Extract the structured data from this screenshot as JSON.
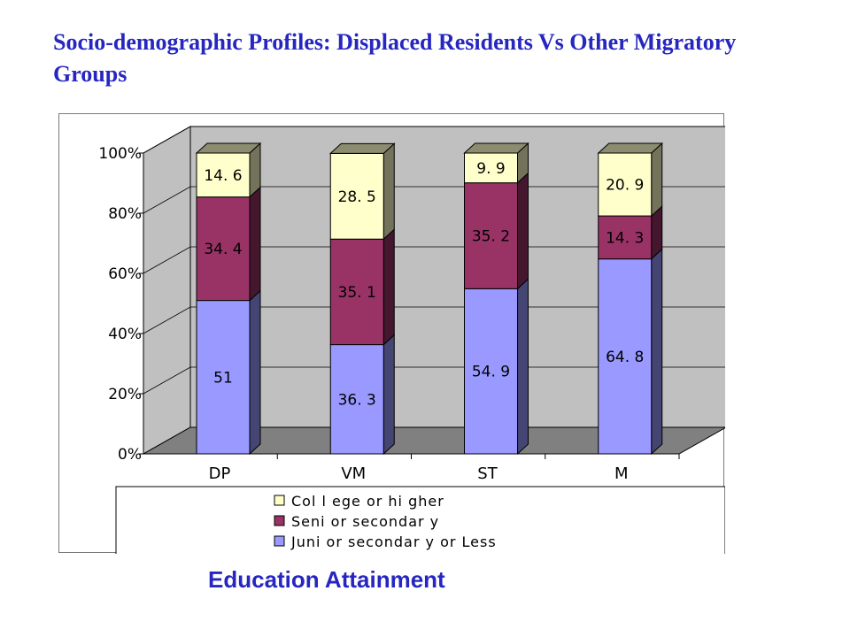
{
  "slide": {
    "title": "Socio-demographic Profiles: Displaced Residents Vs Other Migratory Groups",
    "caption": "Education Attainment"
  },
  "chart_data": {
    "type": "bar",
    "stacked": true,
    "percent": true,
    "three_d": true,
    "categories": [
      "DP",
      "VM",
      "ST",
      "M"
    ],
    "series": [
      {
        "name": "Juni or  secondar y  or  Less",
        "values": [
          51,
          36.3,
          54.9,
          64.8
        ],
        "labels": [
          "51",
          "36. 3",
          "54. 9",
          "64. 8"
        ],
        "color": "#9999ff"
      },
      {
        "name": "Seni or  secondar y",
        "values": [
          34.4,
          35.1,
          35.2,
          14.3
        ],
        "labels": [
          "34. 4",
          "35. 1",
          "35. 2",
          "14. 3"
        ],
        "color": "#993366"
      },
      {
        "name": "Col l ege  or  hi gher",
        "values": [
          14.6,
          28.5,
          9.9,
          20.9
        ],
        "labels": [
          "14. 6",
          "28. 5",
          "9. 9",
          "20. 9"
        ],
        "color": "#ffffcc"
      }
    ],
    "y_ticks": [
      "0%",
      "20%",
      "40%",
      "60%",
      "80%",
      "100%"
    ],
    "ylim": [
      0,
      100
    ],
    "grid": true,
    "legend_position": "bottom",
    "wall_color": "#c0c0c0",
    "floor_color": "#808080"
  }
}
